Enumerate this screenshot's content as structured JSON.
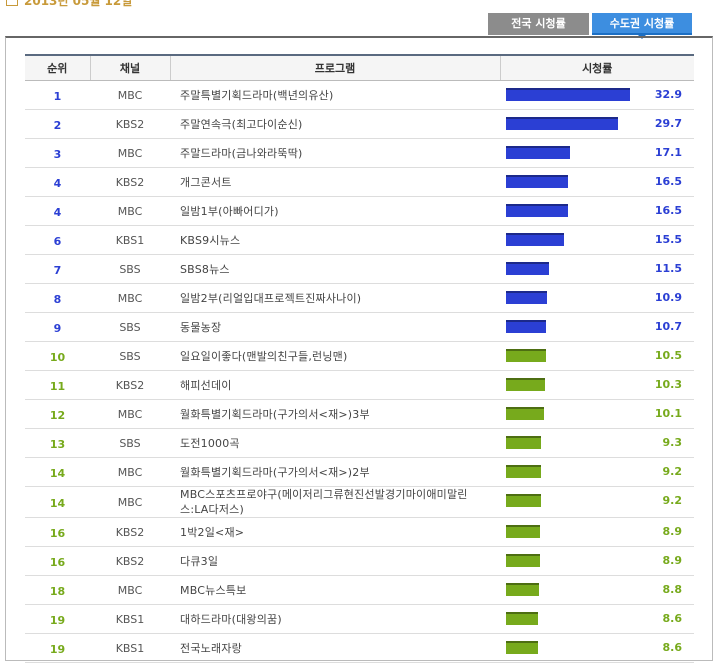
{
  "date": "2013년 05월 12일",
  "tabs": [
    "전국 시청률",
    "수도권 시청률"
  ],
  "table": {
    "columns": [
      "순위",
      "채널",
      "프로그램",
      "시청률"
    ],
    "rows": [
      {
        "rank": 1,
        "channel": "MBC",
        "program": "주말특별기획드라마(백년의유산)",
        "rating": 32.9,
        "color": "#2b3fd4"
      },
      {
        "rank": 2,
        "channel": "KBS2",
        "program": "주말연속극(최고다이순신)",
        "rating": 29.7,
        "color": "#2b3fd4"
      },
      {
        "rank": 3,
        "channel": "MBC",
        "program": "주말드라마(금나와라뚝딱)",
        "rating": 17.1,
        "color": "#2b3fd4"
      },
      {
        "rank": 4,
        "channel": "KBS2",
        "program": "개그콘서트",
        "rating": 16.5,
        "color": "#2b3fd4"
      },
      {
        "rank": 4,
        "channel": "MBC",
        "program": "일밤1부(아빠어디가)",
        "rating": 16.5,
        "color": "#2b3fd4"
      },
      {
        "rank": 6,
        "channel": "KBS1",
        "program": "KBS9시뉴스",
        "rating": 15.5,
        "color": "#2b3fd4"
      },
      {
        "rank": 7,
        "channel": "SBS",
        "program": "SBS8뉴스",
        "rating": 11.5,
        "color": "#2b3fd4"
      },
      {
        "rank": 8,
        "channel": "MBC",
        "program": "일밤2부(리얼입대프로젝트진짜사나이)",
        "rating": 10.9,
        "color": "#2b3fd4"
      },
      {
        "rank": 9,
        "channel": "SBS",
        "program": "동물농장",
        "rating": 10.7,
        "color": "#2b3fd4"
      },
      {
        "rank": 10,
        "channel": "SBS",
        "program": "일요일이좋다(맨발의친구들,런닝맨)",
        "rating": 10.5,
        "color": "#77aa1c"
      },
      {
        "rank": 11,
        "channel": "KBS2",
        "program": "해피선데이",
        "rating": 10.3,
        "color": "#77aa1c"
      },
      {
        "rank": 12,
        "channel": "MBC",
        "program": "월화특별기획드라마(구가의서<재>)3부",
        "rating": 10.1,
        "color": "#77aa1c"
      },
      {
        "rank": 13,
        "channel": "SBS",
        "program": "도전1000곡",
        "rating": 9.3,
        "color": "#77aa1c"
      },
      {
        "rank": 14,
        "channel": "MBC",
        "program": "월화특별기획드라마(구가의서<재>)2부",
        "rating": 9.2,
        "color": "#77aa1c"
      },
      {
        "rank": 14,
        "channel": "MBC",
        "program": "MBC스포츠프로야구(메이저리그류현진선발경기마이애미말린스:LA다저스)",
        "rating": 9.2,
        "color": "#77aa1c"
      },
      {
        "rank": 16,
        "channel": "KBS2",
        "program": "1박2일<재>",
        "rating": 8.9,
        "color": "#77aa1c"
      },
      {
        "rank": 16,
        "channel": "KBS2",
        "program": "다큐3일",
        "rating": 8.9,
        "color": "#77aa1c"
      },
      {
        "rank": 18,
        "channel": "MBC",
        "program": "MBC뉴스특보",
        "rating": 8.8,
        "color": "#77aa1c"
      },
      {
        "rank": 19,
        "channel": "KBS1",
        "program": "대하드라마(대왕의꿈)",
        "rating": 8.6,
        "color": "#77aa1c"
      },
      {
        "rank": 19,
        "channel": "KBS1",
        "program": "전국노래자랑",
        "rating": 8.6,
        "color": "#77aa1c"
      }
    ]
  }
}
